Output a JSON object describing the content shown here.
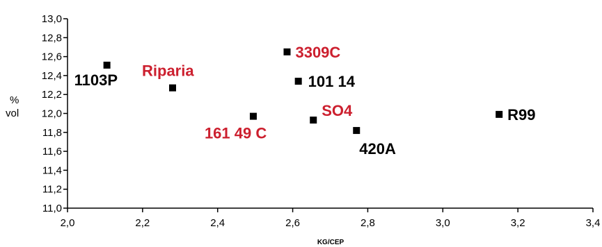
{
  "chart_data": {
    "type": "scatter",
    "xlabel": "KG/CEP",
    "ylabel_line1": "%",
    "ylabel_line2": "vol",
    "xlim": [
      2.0,
      3.4
    ],
    "ylim": [
      11.0,
      13.0
    ],
    "x_ticks": [
      "2,0",
      "2,2",
      "2,4",
      "2,6",
      "2,8",
      "3,0",
      "3,2",
      "3,4"
    ],
    "y_ticks": [
      "11,0",
      "11,2",
      "11,4",
      "11,6",
      "11,8",
      "12,0",
      "12,2",
      "12,4",
      "12,6",
      "12,8",
      "13,0"
    ],
    "grid": false,
    "points": [
      {
        "label": "1103P",
        "x": 2.105,
        "y": 12.51,
        "color": "#000000"
      },
      {
        "label": "Riparia",
        "x": 2.28,
        "y": 12.27,
        "color": "#cc1f2e"
      },
      {
        "label": "161 49 C",
        "x": 2.495,
        "y": 11.97,
        "color": "#cc1f2e"
      },
      {
        "label": "3309C",
        "x": 2.585,
        "y": 12.65,
        "color": "#cc1f2e"
      },
      {
        "label": "101 14",
        "x": 2.615,
        "y": 12.34,
        "color": "#000000"
      },
      {
        "label": "SO4",
        "x": 2.655,
        "y": 11.93,
        "color": "#cc1f2e"
      },
      {
        "label": "420A",
        "x": 2.77,
        "y": 11.82,
        "color": "#000000"
      },
      {
        "label": "R99",
        "x": 3.15,
        "y": 11.99,
        "color": "#000000"
      }
    ]
  }
}
